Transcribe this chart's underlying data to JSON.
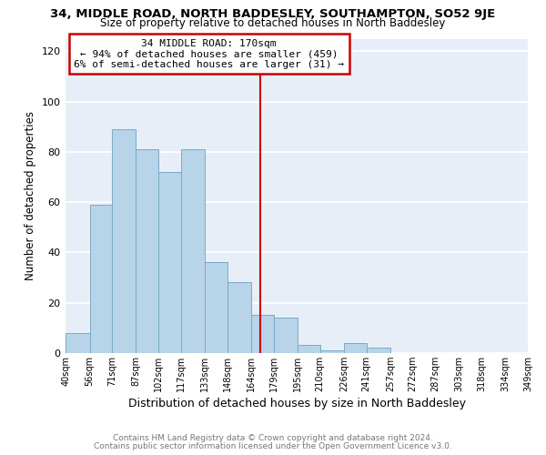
{
  "title_line1": "34, MIDDLE ROAD, NORTH BADDESLEY, SOUTHAMPTON, SO52 9JE",
  "title_line2": "Size of property relative to detached houses in North Baddesley",
  "xlabel": "Distribution of detached houses by size in North Baddesley",
  "ylabel": "Number of detached properties",
  "bar_edges": [
    40,
    56,
    71,
    87,
    102,
    117,
    133,
    148,
    164,
    179,
    195,
    210,
    226,
    241,
    257,
    272,
    287,
    303,
    318,
    334,
    349
  ],
  "bar_heights": [
    8,
    59,
    89,
    81,
    72,
    81,
    36,
    28,
    15,
    14,
    3,
    1,
    4,
    2,
    0,
    0,
    0,
    0,
    0,
    0
  ],
  "bar_color": "#b8d4e8",
  "bar_edge_color": "#7aaac8",
  "vline_x": 170,
  "vline_color": "#cc0000",
  "ylim": [
    0,
    125
  ],
  "yticks": [
    0,
    20,
    40,
    60,
    80,
    100,
    120
  ],
  "annotation_title": "34 MIDDLE ROAD: 170sqm",
  "annotation_line1": "← 94% of detached houses are smaller (459)",
  "annotation_line2": "6% of semi-detached houses are larger (31) →",
  "annotation_box_color": "#ffffff",
  "annotation_box_edge": "#cc0000",
  "footer_line1": "Contains HM Land Registry data © Crown copyright and database right 2024.",
  "footer_line2": "Contains public sector information licensed under the Open Government Licence v3.0.",
  "tick_labels": [
    "40sqm",
    "56sqm",
    "71sqm",
    "87sqm",
    "102sqm",
    "117sqm",
    "133sqm",
    "148sqm",
    "164sqm",
    "179sqm",
    "195sqm",
    "210sqm",
    "226sqm",
    "241sqm",
    "257sqm",
    "272sqm",
    "287sqm",
    "303sqm",
    "318sqm",
    "334sqm",
    "349sqm"
  ],
  "figure_bg": "#ffffff",
  "plot_bg": "#e8eef8",
  "grid_color": "#ffffff"
}
